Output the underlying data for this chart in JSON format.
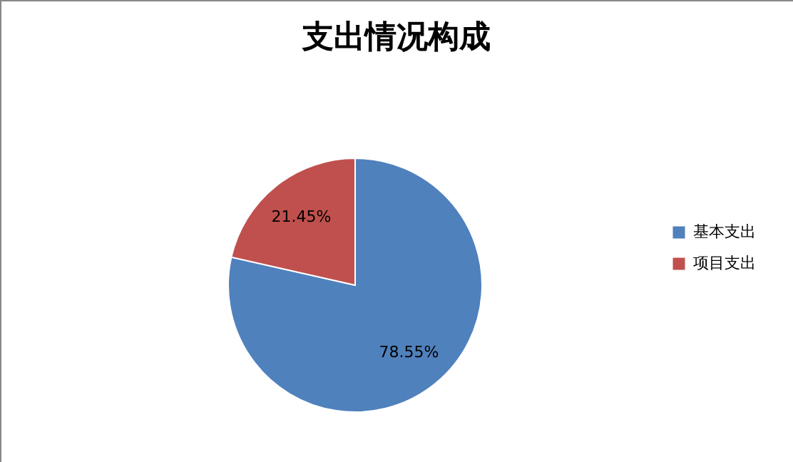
{
  "chart_data": {
    "type": "pie",
    "title": "支出情况构成",
    "categories": [
      "基本支出",
      "项目支出"
    ],
    "values": [
      78.55,
      21.45
    ],
    "colors": [
      "#4f81bd",
      "#c0504d"
    ],
    "value_labels": [
      "78.55%",
      "21.45%"
    ],
    "legend": "right"
  }
}
